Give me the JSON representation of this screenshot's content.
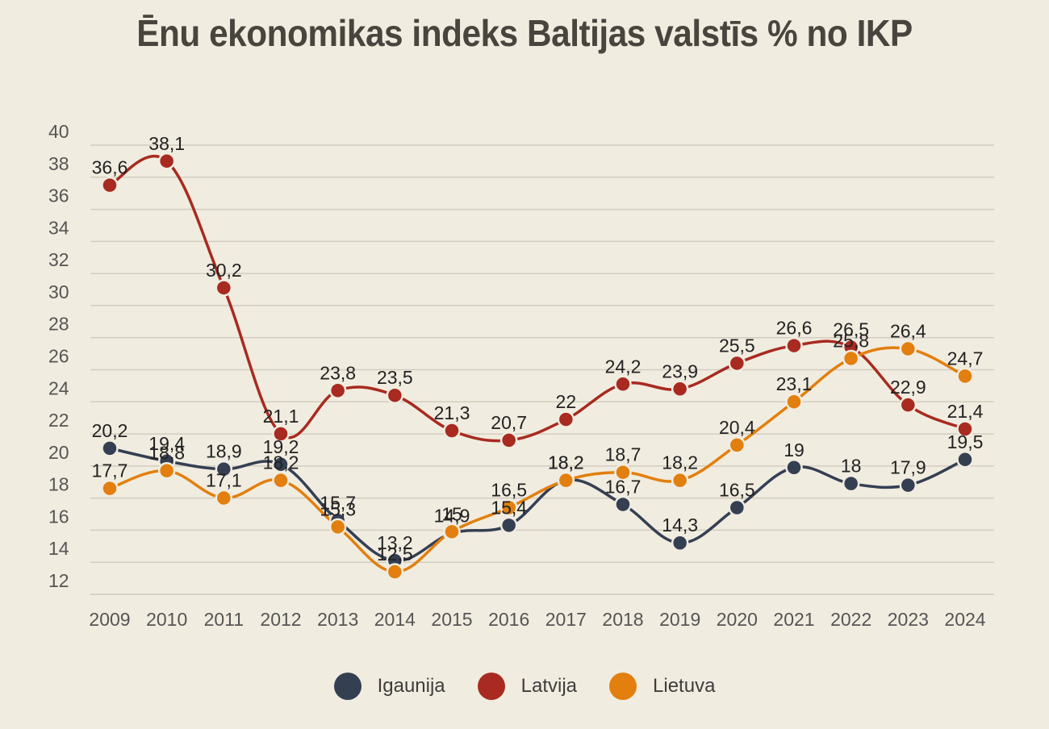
{
  "title": "Ēnu ekonomikas indeks Baltijas valstīs % no IKP",
  "chart_data": {
    "type": "line",
    "title": "Ēnu ekonomikas indeks Baltijas valstīs % no IKP",
    "xlabel": "",
    "ylabel": "",
    "categories": [
      "2009",
      "2010",
      "2011",
      "2012",
      "2013",
      "2014",
      "2015",
      "2016",
      "2017",
      "2018",
      "2019",
      "2020",
      "2021",
      "2022",
      "2023",
      "2024"
    ],
    "ylim": [
      11,
      41
    ],
    "yticks": [
      12,
      14,
      16,
      18,
      20,
      22,
      24,
      26,
      28,
      30,
      32,
      34,
      36,
      38,
      40
    ],
    "grid": true,
    "legend_position": "bottom",
    "series": [
      {
        "name": "Igaunija",
        "color": "#343f52",
        "values": [
          20.2,
          19.4,
          18.9,
          19.2,
          15.7,
          13.2,
          14.9,
          15.4,
          18.2,
          16.7,
          14.3,
          16.5,
          19,
          18,
          17.9,
          19.5
        ],
        "labels": [
          "20,2",
          "19,4",
          "18,9",
          "19,2",
          "15,7",
          "13,2",
          "14,9",
          "15,4",
          "18,2",
          "16,7",
          "14,3",
          "16,5",
          "19",
          "18",
          "17,9",
          "19,5"
        ]
      },
      {
        "name": "Latvija",
        "color": "#a82a20",
        "values": [
          36.6,
          38.1,
          30.2,
          21.1,
          23.8,
          23.5,
          21.3,
          20.7,
          22,
          24.2,
          23.9,
          25.5,
          26.6,
          26.5,
          22.9,
          21.4
        ],
        "labels": [
          "36,6",
          "38,1",
          "30,2",
          "21,1",
          "23,8",
          "23,5",
          "21,3",
          "20,7",
          "22",
          "24,2",
          "23,9",
          "25,5",
          "26,6",
          "26,5",
          "22,9",
          "21,4"
        ]
      },
      {
        "name": "Lietuva",
        "color": "#e27f0e",
        "values": [
          17.7,
          18.8,
          17.1,
          18.2,
          15.3,
          12.5,
          15,
          16.5,
          18.2,
          18.7,
          18.2,
          20.4,
          23.1,
          25.8,
          26.4,
          24.7
        ],
        "labels": [
          "17,7",
          "18,8",
          "17,1",
          "18,2",
          "15,3",
          "12,5",
          "15",
          "16,5",
          "18,2",
          "18,7",
          "18,2",
          "20,4",
          "23,1",
          "25,8",
          "26,4",
          "24,7"
        ]
      }
    ]
  }
}
